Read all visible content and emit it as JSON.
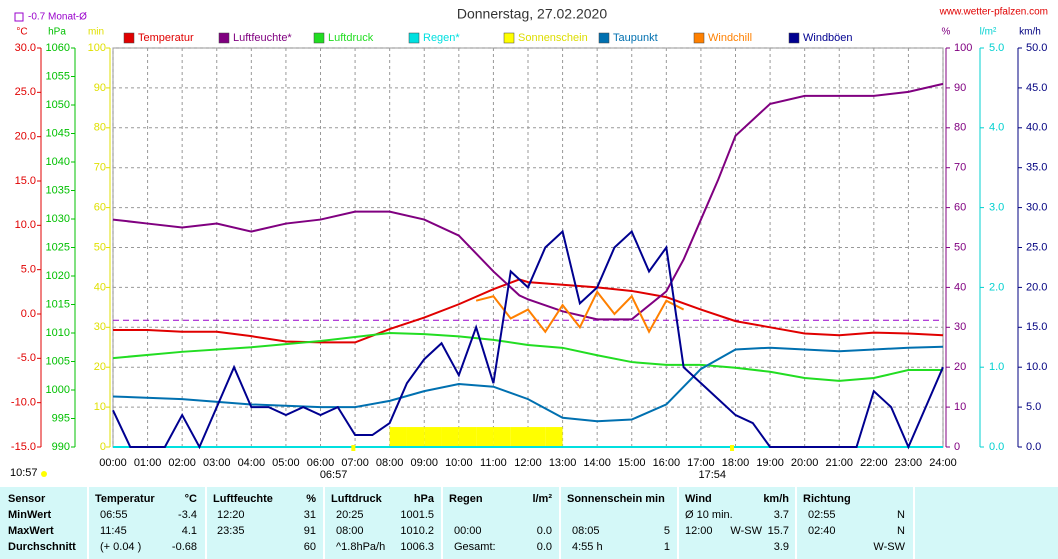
{
  "chart_data": {
    "type": "line",
    "title": "Donnerstag, 27.02.2020",
    "source": "www.wetter-pfalzen.com",
    "monthly_avg": {
      "label": "-0.7 Monat-Ø",
      "value": -0.7,
      "axis": 0,
      "color": "#9900cc"
    },
    "xlim": [
      0,
      24
    ],
    "xticks": [
      {
        "value": 0,
        "label": "00:00"
      },
      {
        "value": 1,
        "label": "01:00"
      },
      {
        "value": 2,
        "label": "02:00"
      },
      {
        "value": 3,
        "label": "03:00"
      },
      {
        "value": 4,
        "label": "04:00"
      },
      {
        "value": 5,
        "label": "05:00"
      },
      {
        "value": 6,
        "label": "06:00"
      },
      {
        "value": 7,
        "label": "07:00"
      },
      {
        "value": 8,
        "label": "08:00"
      },
      {
        "value": 9,
        "label": "09:00"
      },
      {
        "value": 10,
        "label": "10:00"
      },
      {
        "value": 11,
        "label": "11:00"
      },
      {
        "value": 12,
        "label": "12:00"
      },
      {
        "value": 13,
        "label": "13:00"
      },
      {
        "value": 14,
        "label": "14:00"
      },
      {
        "value": 15,
        "label": "15:00"
      },
      {
        "value": 16,
        "label": "16:00"
      },
      {
        "value": 17,
        "label": "17:00"
      },
      {
        "value": 18,
        "label": "18:00"
      },
      {
        "value": 19,
        "label": "19:00"
      },
      {
        "value": 20,
        "label": "20:00"
      },
      {
        "value": 21,
        "label": "21:00"
      },
      {
        "value": 22,
        "label": "22:00"
      },
      {
        "value": 23,
        "label": "23:00"
      },
      {
        "value": 24,
        "label": "24:00"
      }
    ],
    "grid": true,
    "axes": [
      {
        "unit": "°C",
        "color": "#e00000",
        "lim": [
          -15,
          30
        ],
        "ticks": [
          {
            "value": 30,
            "label": "30.0"
          },
          {
            "value": 25,
            "label": "25.0"
          },
          {
            "value": 20,
            "label": "20.0"
          },
          {
            "value": 15,
            "label": "15.0"
          },
          {
            "value": 10,
            "label": "10.0"
          },
          {
            "value": 5,
            "label": "5.0"
          },
          {
            "value": 0,
            "label": "0.0"
          },
          {
            "value": -5,
            "label": "-5.0"
          },
          {
            "value": -10,
            "label": "-10.0"
          },
          {
            "value": -15,
            "label": "-15.0"
          }
        ]
      },
      {
        "unit": "hPa",
        "color": "#00c000",
        "lim": [
          990,
          1060
        ],
        "ticks": [
          1060,
          1055,
          1050,
          1045,
          1040,
          1035,
          1030,
          1025,
          1020,
          1015,
          1010,
          1005,
          1000,
          995,
          990
        ]
      },
      {
        "unit": "min",
        "color": "#e0e000",
        "lim": [
          0,
          100
        ],
        "ticks": [
          100,
          90,
          80,
          70,
          60,
          50,
          40,
          30,
          20,
          10,
          0
        ]
      },
      {
        "unit": "%",
        "color": "#800080",
        "lim": [
          0,
          100
        ],
        "ticks": [
          100,
          90,
          80,
          70,
          60,
          50,
          40,
          30,
          20,
          10,
          0
        ]
      },
      {
        "unit": "l/m²",
        "color": "#00d0d0",
        "lim": [
          0,
          5
        ],
        "ticks": [
          {
            "value": 5,
            "label": "5.0"
          },
          {
            "value": 4,
            "label": "4.0"
          },
          {
            "value": 3,
            "label": "3.0"
          },
          {
            "value": 2,
            "label": "2.0"
          },
          {
            "value": 1,
            "label": "1.0"
          },
          {
            "value": 0,
            "label": "0.0"
          }
        ]
      },
      {
        "unit": "km/h",
        "color": "#000080",
        "lim": [
          0,
          50
        ],
        "ticks": [
          {
            "value": 50,
            "label": "50.0"
          },
          {
            "value": 45,
            "label": "45.0"
          },
          {
            "value": 40,
            "label": "40.0"
          },
          {
            "value": 35,
            "label": "35.0"
          },
          {
            "value": 30,
            "label": "30.0"
          },
          {
            "value": 25,
            "label": "25.0"
          },
          {
            "value": 20,
            "label": "20.0"
          },
          {
            "value": 15,
            "label": "15.0"
          },
          {
            "value": 10,
            "label": "10.0"
          },
          {
            "value": 5,
            "label": "5.0"
          },
          {
            "value": 0,
            "label": "0.0"
          }
        ]
      }
    ],
    "series": [
      {
        "name": "Temperatur",
        "color": "#e00000",
        "axis": 0,
        "x": [
          0,
          1,
          2,
          3,
          4,
          5,
          6,
          7,
          8,
          9,
          10,
          11,
          11.75,
          12,
          13,
          14,
          15,
          16,
          17,
          18,
          19,
          20,
          21,
          22,
          23,
          24
        ],
        "values": [
          -1.8,
          -1.8,
          -2.0,
          -2.0,
          -2.5,
          -3.1,
          -3.2,
          -3.2,
          -1.7,
          -0.4,
          1.1,
          2.8,
          3.9,
          3.6,
          3.3,
          3.0,
          2.6,
          1.9,
          0.5,
          -0.8,
          -1.5,
          -2.2,
          -2.4,
          -2.1,
          -2.2,
          -2.4
        ]
      },
      {
        "name": "Luftfeuchte*",
        "color": "#800080",
        "axis": 3,
        "x": [
          0,
          1,
          2,
          3,
          4,
          5,
          6,
          7,
          8,
          9,
          10,
          11,
          11.75,
          12,
          13,
          14,
          15,
          16,
          16.5,
          17,
          17.5,
          18,
          19,
          20,
          21,
          22,
          23,
          24
        ],
        "values": [
          57,
          56,
          55,
          56,
          54,
          56,
          57,
          59,
          59,
          57,
          53,
          44,
          38,
          37,
          34,
          32,
          32,
          39,
          47,
          57,
          67,
          78,
          86,
          88,
          88,
          88,
          89,
          91
        ]
      },
      {
        "name": "Luftdruck",
        "color": "#22dd22",
        "axis": 1,
        "x": [
          0,
          2,
          4,
          6,
          8,
          9,
          10,
          11,
          12,
          13,
          14,
          15,
          16,
          17,
          18,
          19,
          20,
          21,
          22,
          23,
          24
        ],
        "values": [
          1005.6,
          1006.7,
          1007.5,
          1008.6,
          1010.0,
          1009.8,
          1009.4,
          1008.8,
          1007.9,
          1007.4,
          1006.1,
          1004.9,
          1004.4,
          1004.4,
          1003.9,
          1003.2,
          1002.1,
          1001.6,
          1002.1,
          1003.5,
          1003.5
        ]
      },
      {
        "name": "Regen*",
        "color": "#00e0e0",
        "axis": 4,
        "x": [
          0,
          24
        ],
        "values": [
          0,
          0
        ]
      },
      {
        "name": "Sonnenschein",
        "color": "#ffff00",
        "axis": 2,
        "kind": "bar",
        "x": [
          8,
          8.5,
          9,
          9.5,
          10,
          10.5,
          11,
          11.5,
          12,
          12.5
        ],
        "values": [
          5,
          5,
          5,
          5,
          5,
          5,
          5,
          5,
          5,
          5
        ]
      },
      {
        "name": "Taupunkt",
        "color": "#0070b0",
        "axis": 0,
        "x": [
          0,
          2,
          4,
          6,
          7,
          8,
          9,
          10,
          11,
          12,
          13,
          14,
          15,
          16,
          17,
          18,
          19,
          20,
          21,
          22,
          23,
          24
        ],
        "values": [
          -9.3,
          -9.6,
          -10.2,
          -10.5,
          -10.5,
          -9.8,
          -8.7,
          -7.9,
          -8.2,
          -9.6,
          -11.7,
          -12.1,
          -11.9,
          -10.2,
          -6.2,
          -4.0,
          -3.8,
          -4.0,
          -4.2,
          -4.0,
          -3.8,
          -3.7
        ]
      },
      {
        "name": "Windchill",
        "color": "#ff8000",
        "axis": 0,
        "x": [
          10.5,
          11,
          11.5,
          12,
          12.5,
          13,
          13.5,
          14,
          14.5,
          15,
          15.5,
          16,
          16.5
        ],
        "values": [
          1.5,
          2.0,
          -0.5,
          0.5,
          -2.0,
          1.0,
          -1.5,
          2.5,
          0.0,
          2.0,
          -2.0,
          1.5,
          0.5
        ]
      },
      {
        "name": "Windböen",
        "color": "#000090",
        "axis": 5,
        "x": [
          0,
          0.5,
          1,
          1.5,
          2,
          2.5,
          3,
          3.5,
          4,
          4.5,
          5,
          5.5,
          6,
          6.5,
          7,
          7.5,
          8,
          8.5,
          9,
          9.5,
          10,
          10.5,
          11,
          11.5,
          12,
          12.5,
          13,
          13.5,
          14,
          14.5,
          15,
          15.5,
          16,
          16.5,
          17,
          17.5,
          18,
          18.5,
          19,
          19.5,
          20,
          20.5,
          21,
          21.5,
          22,
          22.5,
          23,
          23.5,
          24
        ],
        "values": [
          4.6,
          0,
          0,
          0,
          4,
          0,
          5,
          10,
          5,
          5,
          4,
          5,
          4,
          5,
          1.5,
          1.5,
          3,
          8,
          11,
          13,
          9,
          15,
          8,
          22,
          20,
          25,
          27,
          18,
          20,
          25,
          27,
          22,
          25,
          10,
          8,
          6,
          4,
          3,
          0,
          0,
          0,
          0,
          0,
          0,
          7,
          5,
          0,
          5,
          10
        ]
      }
    ],
    "sunrise": {
      "label": "06:57",
      "x": 6.95
    },
    "sunset": {
      "label": "17:54",
      "x": 17.9
    },
    "now": "10:57"
  },
  "table": {
    "header": [
      "Sensor",
      "Temperatur",
      "°C",
      "Luftfeuchte",
      "%",
      "Luftdruck",
      "hPa",
      "Regen",
      "l/m²",
      "Sonnenschein min",
      null,
      "Wind",
      null,
      "km/h",
      "Richtung",
      null
    ],
    "rows": [
      [
        "MinWert",
        "06:55",
        "-3.4",
        "12:20",
        "31",
        "20:25",
        "1001.5",
        null,
        null,
        null,
        null,
        "Ø 10 min.",
        null,
        "3.7",
        "02:55",
        "N"
      ],
      [
        "MaxWert",
        "11:45",
        "4.1",
        "23:35",
        "91",
        "08:00",
        "1010.2",
        "00:00",
        "0.0",
        "08:05",
        "5",
        "12:00",
        "W-SW",
        "15.7",
        "02:40",
        "N"
      ],
      [
        "Durchschnitt",
        "(+ 0.04 )",
        "-0.68",
        null,
        "60",
        "^1.8hPa/h",
        "1006.3",
        "Gesamt:",
        "0.0",
        "4:55 h",
        "1",
        null,
        null,
        "3.9",
        null,
        "W-SW"
      ]
    ]
  }
}
